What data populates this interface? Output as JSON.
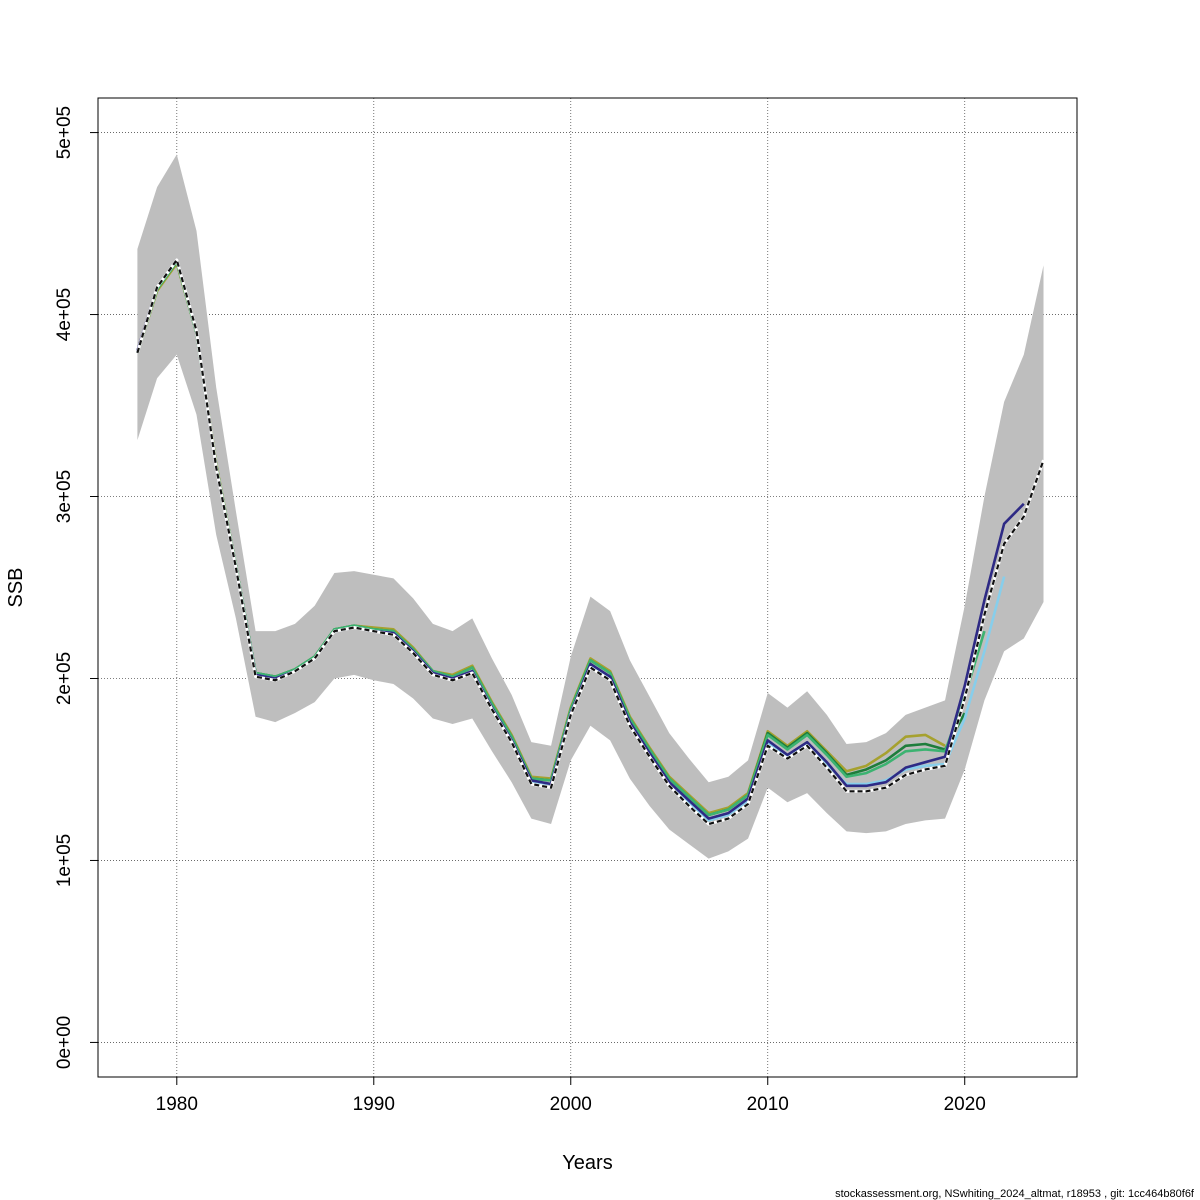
{
  "chart_data": {
    "type": "line",
    "title": "",
    "xlabel": "Years",
    "ylabel": "SSB",
    "xlim": [
      1976,
      2025.7
    ],
    "ylim": [
      -19000,
      519000
    ],
    "grid": true,
    "x_ticks": [
      1980,
      1990,
      2000,
      2010,
      2020
    ],
    "x_tick_labels": [
      "1980",
      "1990",
      "2000",
      "2010",
      "2020"
    ],
    "y_ticks": [
      0,
      100000,
      200000,
      300000,
      400000,
      500000
    ],
    "y_tick_labels": [
      "0e+00",
      "1e+05",
      "2e+05",
      "3e+05",
      "4e+05",
      "5e+05"
    ],
    "footer": "stockassessment.org, NSwhiting_2024_altmat, r18953 , git: 1cc464b80f6f",
    "band_color": "#bebebe",
    "confidence_band": {
      "x": [
        1978,
        1979,
        1980,
        1981,
        1982,
        1983,
        1984,
        1985,
        1986,
        1987,
        1988,
        1989,
        1990,
        1991,
        1992,
        1993,
        1994,
        1995,
        1996,
        1997,
        1998,
        1999,
        2000,
        2001,
        2002,
        2003,
        2004,
        2005,
        2006,
        2007,
        2008,
        2009,
        2010,
        2011,
        2012,
        2013,
        2014,
        2015,
        2016,
        2017,
        2018,
        2019,
        2020,
        2021,
        2022,
        2023,
        2024
      ],
      "upper": [
        436000,
        470000,
        488000,
        446000,
        360000,
        292000,
        226000,
        226000,
        230000,
        240000,
        258000,
        259000,
        257000,
        255000,
        244000,
        230000,
        226000,
        233000,
        211000,
        191000,
        165000,
        163000,
        212000,
        245000,
        237000,
        210000,
        190000,
        170000,
        156000,
        143000,
        146000,
        155000,
        192000,
        184000,
        193000,
        180000,
        164000,
        165000,
        170000,
        180000,
        184000,
        188000,
        240000,
        300000,
        352000,
        378000,
        427000
      ],
      "lower": [
        331000,
        365000,
        378000,
        345000,
        279000,
        233000,
        179000,
        176000,
        181000,
        187000,
        200000,
        202000,
        199000,
        197000,
        189000,
        178000,
        175000,
        178000,
        160000,
        143000,
        123000,
        120000,
        155000,
        174000,
        166000,
        145000,
        130000,
        117000,
        109000,
        101000,
        105000,
        112000,
        140000,
        132000,
        137000,
        126000,
        116000,
        115000,
        116000,
        120000,
        122000,
        123000,
        150000,
        188000,
        215000,
        222000,
        242000
      ]
    },
    "series": [
      {
        "color": "#a6a12f",
        "dashed": false,
        "x": [
          1978,
          1979,
          1980,
          1981,
          1982,
          1983,
          1984,
          1985,
          1986,
          1987,
          1988,
          1989,
          1990,
          1991,
          1992,
          1993,
          1994,
          1995,
          1996,
          1997,
          1998,
          1999,
          2000,
          2001,
          2002,
          2003,
          2004,
          2005,
          2006,
          2007,
          2008,
          2009,
          2010,
          2011,
          2012,
          2013,
          2014,
          2015,
          2016,
          2017,
          2018,
          2019
        ],
        "values": [
          379000,
          413000,
          428000,
          390000,
          318000,
          262000,
          203000,
          201000,
          205000,
          212000,
          227000,
          229000,
          228000,
          227000,
          217000,
          204000,
          202000,
          207000,
          187000,
          169000,
          146000,
          145000,
          184000,
          211000,
          204000,
          179000,
          162000,
          146000,
          136000,
          126000,
          129000,
          137000,
          171000,
          163000,
          171000,
          160000,
          149000,
          152000,
          159000,
          168000,
          169000,
          163000
        ]
      },
      {
        "color": "#1e7d3c",
        "dashed": false,
        "x": [
          1978,
          1979,
          1980,
          1981,
          1982,
          1983,
          1984,
          1985,
          1986,
          1987,
          1988,
          1989,
          1990,
          1991,
          1992,
          1993,
          1994,
          1995,
          1996,
          1997,
          1998,
          1999,
          2000,
          2001,
          2002,
          2003,
          2004,
          2005,
          2006,
          2007,
          2008,
          2009,
          2010,
          2011,
          2012,
          2013,
          2014,
          2015,
          2016,
          2017,
          2018,
          2019,
          2020
        ],
        "values": [
          379000,
          414000,
          429000,
          390000,
          317000,
          262000,
          203000,
          201000,
          205000,
          212000,
          227000,
          229000,
          227000,
          226000,
          216000,
          204000,
          201000,
          206000,
          186000,
          168000,
          145000,
          144000,
          183000,
          210000,
          203000,
          178000,
          161000,
          145000,
          135000,
          125000,
          128000,
          136000,
          170000,
          162000,
          170000,
          159000,
          147000,
          150000,
          155000,
          163000,
          164000,
          161000,
          181000
        ]
      },
      {
        "color": "#3cb371",
        "dashed": false,
        "x": [
          1978,
          1979,
          1980,
          1981,
          1982,
          1983,
          1984,
          1985,
          1986,
          1987,
          1988,
          1989,
          1990,
          1991,
          1992,
          1993,
          1994,
          1995,
          1996,
          1997,
          1998,
          1999,
          2000,
          2001,
          2002,
          2003,
          2004,
          2005,
          2006,
          2007,
          2008,
          2009,
          2010,
          2011,
          2012,
          2013,
          2014,
          2015,
          2016,
          2017,
          2018,
          2019,
          2020,
          2021
        ],
        "values": [
          379000,
          414000,
          429000,
          390000,
          317000,
          262000,
          203000,
          201000,
          205000,
          212000,
          227000,
          229000,
          227000,
          226000,
          216000,
          204000,
          201000,
          206000,
          186000,
          168000,
          145000,
          144000,
          183000,
          210000,
          203000,
          178000,
          161000,
          145000,
          135000,
          125000,
          128000,
          136000,
          169000,
          161000,
          169000,
          158000,
          146000,
          148000,
          153000,
          160000,
          161000,
          160000,
          190000,
          226000
        ]
      },
      {
        "color": "#87ceeb",
        "dashed": false,
        "x": [
          1978,
          1979,
          1980,
          1981,
          1982,
          1983,
          1984,
          1985,
          1986,
          1987,
          1988,
          1989,
          1990,
          1991,
          1992,
          1993,
          1994,
          1995,
          1996,
          1997,
          1998,
          1999,
          2000,
          2001,
          2002,
          2003,
          2004,
          2005,
          2006,
          2007,
          2008,
          2009,
          2010,
          2011,
          2012,
          2013,
          2014,
          2015,
          2016,
          2017,
          2018,
          2019,
          2020,
          2021,
          2022
        ],
        "values": [
          379000,
          415000,
          430000,
          391000,
          316000,
          261000,
          202000,
          200000,
          204000,
          211000,
          226000,
          228000,
          226000,
          225000,
          215000,
          203000,
          200000,
          204000,
          184000,
          166000,
          143000,
          142000,
          181000,
          207000,
          200000,
          176000,
          158000,
          142000,
          132000,
          122000,
          125000,
          133000,
          165000,
          157000,
          164000,
          153000,
          142000,
          142000,
          144000,
          150000,
          152000,
          153000,
          178000,
          215000,
          256000
        ]
      },
      {
        "color": "#2e2a85",
        "dashed": false,
        "x": [
          1978,
          1979,
          1980,
          1981,
          1982,
          1983,
          1984,
          1985,
          1986,
          1987,
          1988,
          1989,
          1990,
          1991,
          1992,
          1993,
          1994,
          1995,
          1996,
          1997,
          1998,
          1999,
          2000,
          2001,
          2002,
          2003,
          2004,
          2005,
          2006,
          2007,
          2008,
          2009,
          2010,
          2011,
          2012,
          2013,
          2014,
          2015,
          2016,
          2017,
          2018,
          2019,
          2020,
          2021,
          2022,
          2023
        ],
        "values": [
          380000,
          415000,
          430000,
          391000,
          316000,
          261000,
          202000,
          200000,
          204000,
          211000,
          226000,
          228000,
          226000,
          225000,
          215000,
          203000,
          200000,
          204000,
          184000,
          166000,
          144000,
          142000,
          181000,
          208000,
          201000,
          176000,
          159000,
          143000,
          133000,
          123000,
          126000,
          134000,
          166000,
          158000,
          165000,
          154000,
          141000,
          141000,
          143000,
          151000,
          154000,
          157000,
          196000,
          243000,
          285000,
          296000
        ]
      },
      {
        "color": "#111111",
        "dashed": true,
        "x": [
          1978,
          1979,
          1980,
          1981,
          1982,
          1983,
          1984,
          1985,
          1986,
          1987,
          1988,
          1989,
          1990,
          1991,
          1992,
          1993,
          1994,
          1995,
          1996,
          1997,
          1998,
          1999,
          2000,
          2001,
          2002,
          2003,
          2004,
          2005,
          2006,
          2007,
          2008,
          2009,
          2010,
          2011,
          2012,
          2013,
          2014,
          2015,
          2016,
          2017,
          2018,
          2019,
          2020,
          2021,
          2022,
          2023,
          2024
        ],
        "values": [
          379000,
          415000,
          430000,
          391000,
          316000,
          261000,
          201000,
          199000,
          204000,
          211000,
          226000,
          228000,
          226000,
          224000,
          214000,
          202000,
          199000,
          203000,
          183000,
          165000,
          142000,
          140000,
          180000,
          206000,
          199000,
          174000,
          157000,
          141000,
          130000,
          120000,
          123000,
          131000,
          163000,
          156000,
          163000,
          151000,
          138000,
          138000,
          140000,
          147000,
          150000,
          152000,
          189000,
          235000,
          274000,
          289000,
          320000
        ]
      }
    ]
  }
}
